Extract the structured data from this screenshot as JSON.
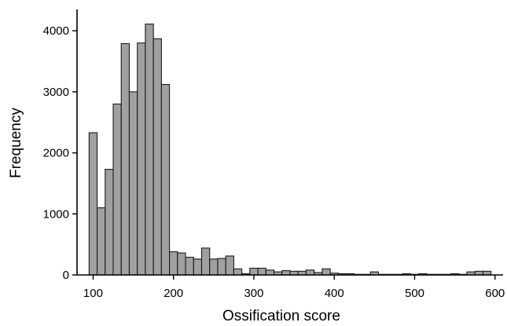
{
  "chart_data": {
    "type": "bar",
    "title": "",
    "xlabel": "Ossification score",
    "ylabel": "Frequency",
    "bin_width": 10,
    "bin_starts": [
      95,
      105,
      115,
      125,
      135,
      145,
      155,
      165,
      175,
      185,
      195,
      205,
      215,
      225,
      235,
      245,
      255,
      265,
      275,
      285,
      295,
      305,
      315,
      325,
      335,
      345,
      355,
      365,
      375,
      385,
      395,
      405,
      415,
      425,
      435,
      445,
      455,
      465,
      475,
      485,
      495,
      505,
      515,
      525,
      535,
      545,
      555,
      565,
      575,
      585
    ],
    "values": [
      2330,
      1100,
      1730,
      2800,
      3790,
      3000,
      3800,
      4110,
      3870,
      3120,
      380,
      360,
      290,
      260,
      440,
      260,
      270,
      310,
      100,
      20,
      110,
      110,
      80,
      50,
      70,
      60,
      60,
      80,
      40,
      100,
      30,
      20,
      20,
      10,
      10,
      50,
      10,
      10,
      10,
      20,
      10,
      20,
      10,
      10,
      10,
      20,
      10,
      50,
      60,
      60
    ],
    "xlim": [
      80,
      610
    ],
    "ylim": [
      0,
      4350
    ],
    "xticks": [
      100,
      200,
      300,
      400,
      500,
      600
    ],
    "yticks": [
      0,
      1000,
      2000,
      3000,
      4000
    ],
    "bar_color": "#a0a0a0",
    "edge_color": "#1a1a1a",
    "grid": false,
    "legend": "none"
  }
}
